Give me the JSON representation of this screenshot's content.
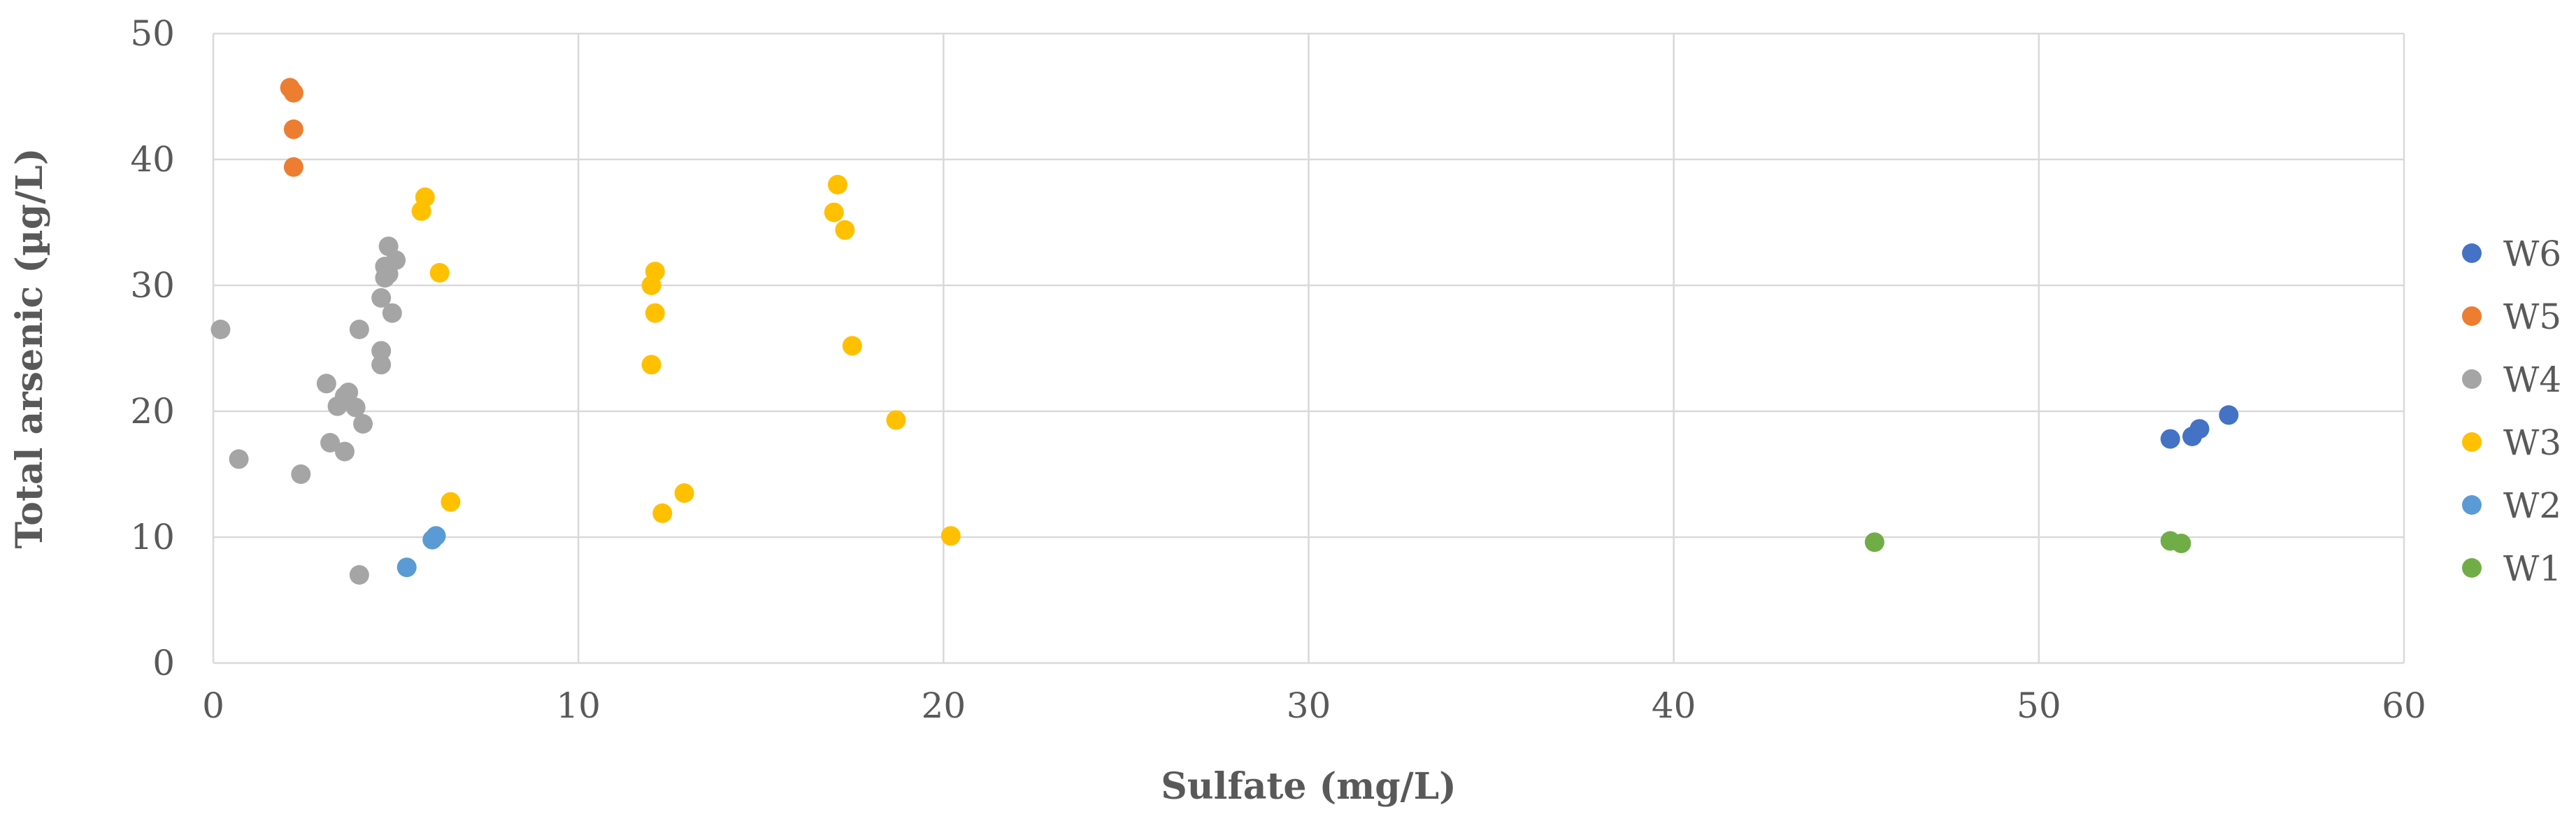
{
  "chart_data": {
    "type": "scatter",
    "title": "",
    "xlabel": "Sulfate (mg/L)",
    "ylabel": "Total arsenic (µg/L)",
    "xlim": [
      0,
      60
    ],
    "ylim": [
      0,
      50
    ],
    "x_ticks": [
      0,
      10,
      20,
      30,
      40,
      50,
      60
    ],
    "y_ticks": [
      0,
      10,
      20,
      30,
      40,
      50
    ],
    "grid": true,
    "legend_position": "right",
    "series": [
      {
        "name": "W6",
        "color": "#4472C4",
        "points": [
          [
            53.6,
            17.8
          ],
          [
            54.2,
            18.0
          ],
          [
            54.4,
            18.6
          ],
          [
            55.2,
            19.7
          ]
        ]
      },
      {
        "name": "W5",
        "color": "#ED7D31",
        "points": [
          [
            2.1,
            45.7
          ],
          [
            2.2,
            45.3
          ],
          [
            2.2,
            42.4
          ],
          [
            2.2,
            39.4
          ]
        ]
      },
      {
        "name": "W4",
        "color": "#A5A5A5",
        "points": [
          [
            0.2,
            26.5
          ],
          [
            0.7,
            16.2
          ],
          [
            2.4,
            15.0
          ],
          [
            3.1,
            22.2
          ],
          [
            3.2,
            17.5
          ],
          [
            3.4,
            20.4
          ],
          [
            3.6,
            16.8
          ],
          [
            3.6,
            21.2
          ],
          [
            3.7,
            21.5
          ],
          [
            3.9,
            20.3
          ],
          [
            4.0,
            26.5
          ],
          [
            4.0,
            7.0
          ],
          [
            4.1,
            19.0
          ],
          [
            4.6,
            23.7
          ],
          [
            4.6,
            24.8
          ],
          [
            4.6,
            29.0
          ],
          [
            4.7,
            30.6
          ],
          [
            4.7,
            31.5
          ],
          [
            4.8,
            30.9
          ],
          [
            4.8,
            33.1
          ],
          [
            4.9,
            27.8
          ],
          [
            5.0,
            32.0
          ]
        ]
      },
      {
        "name": "W3",
        "color": "#FFC000",
        "points": [
          [
            5.7,
            35.9
          ],
          [
            5.8,
            37.0
          ],
          [
            6.2,
            31.0
          ],
          [
            6.5,
            12.8
          ],
          [
            12.0,
            30.0
          ],
          [
            12.0,
            23.7
          ],
          [
            12.1,
            31.1
          ],
          [
            12.1,
            27.8
          ],
          [
            12.3,
            11.9
          ],
          [
            12.9,
            13.5
          ],
          [
            17.0,
            35.8
          ],
          [
            17.1,
            38.0
          ],
          [
            17.3,
            34.4
          ],
          [
            17.5,
            25.2
          ],
          [
            18.7,
            19.3
          ],
          [
            20.2,
            10.1
          ]
        ]
      },
      {
        "name": "W2",
        "color": "#5B9BD5",
        "points": [
          [
            5.3,
            7.6
          ],
          [
            6.0,
            9.8
          ],
          [
            6.1,
            10.1
          ]
        ]
      },
      {
        "name": "W1",
        "color": "#70AD47",
        "points": [
          [
            45.5,
            9.6
          ],
          [
            53.6,
            9.7
          ],
          [
            53.9,
            9.5
          ]
        ]
      }
    ]
  }
}
